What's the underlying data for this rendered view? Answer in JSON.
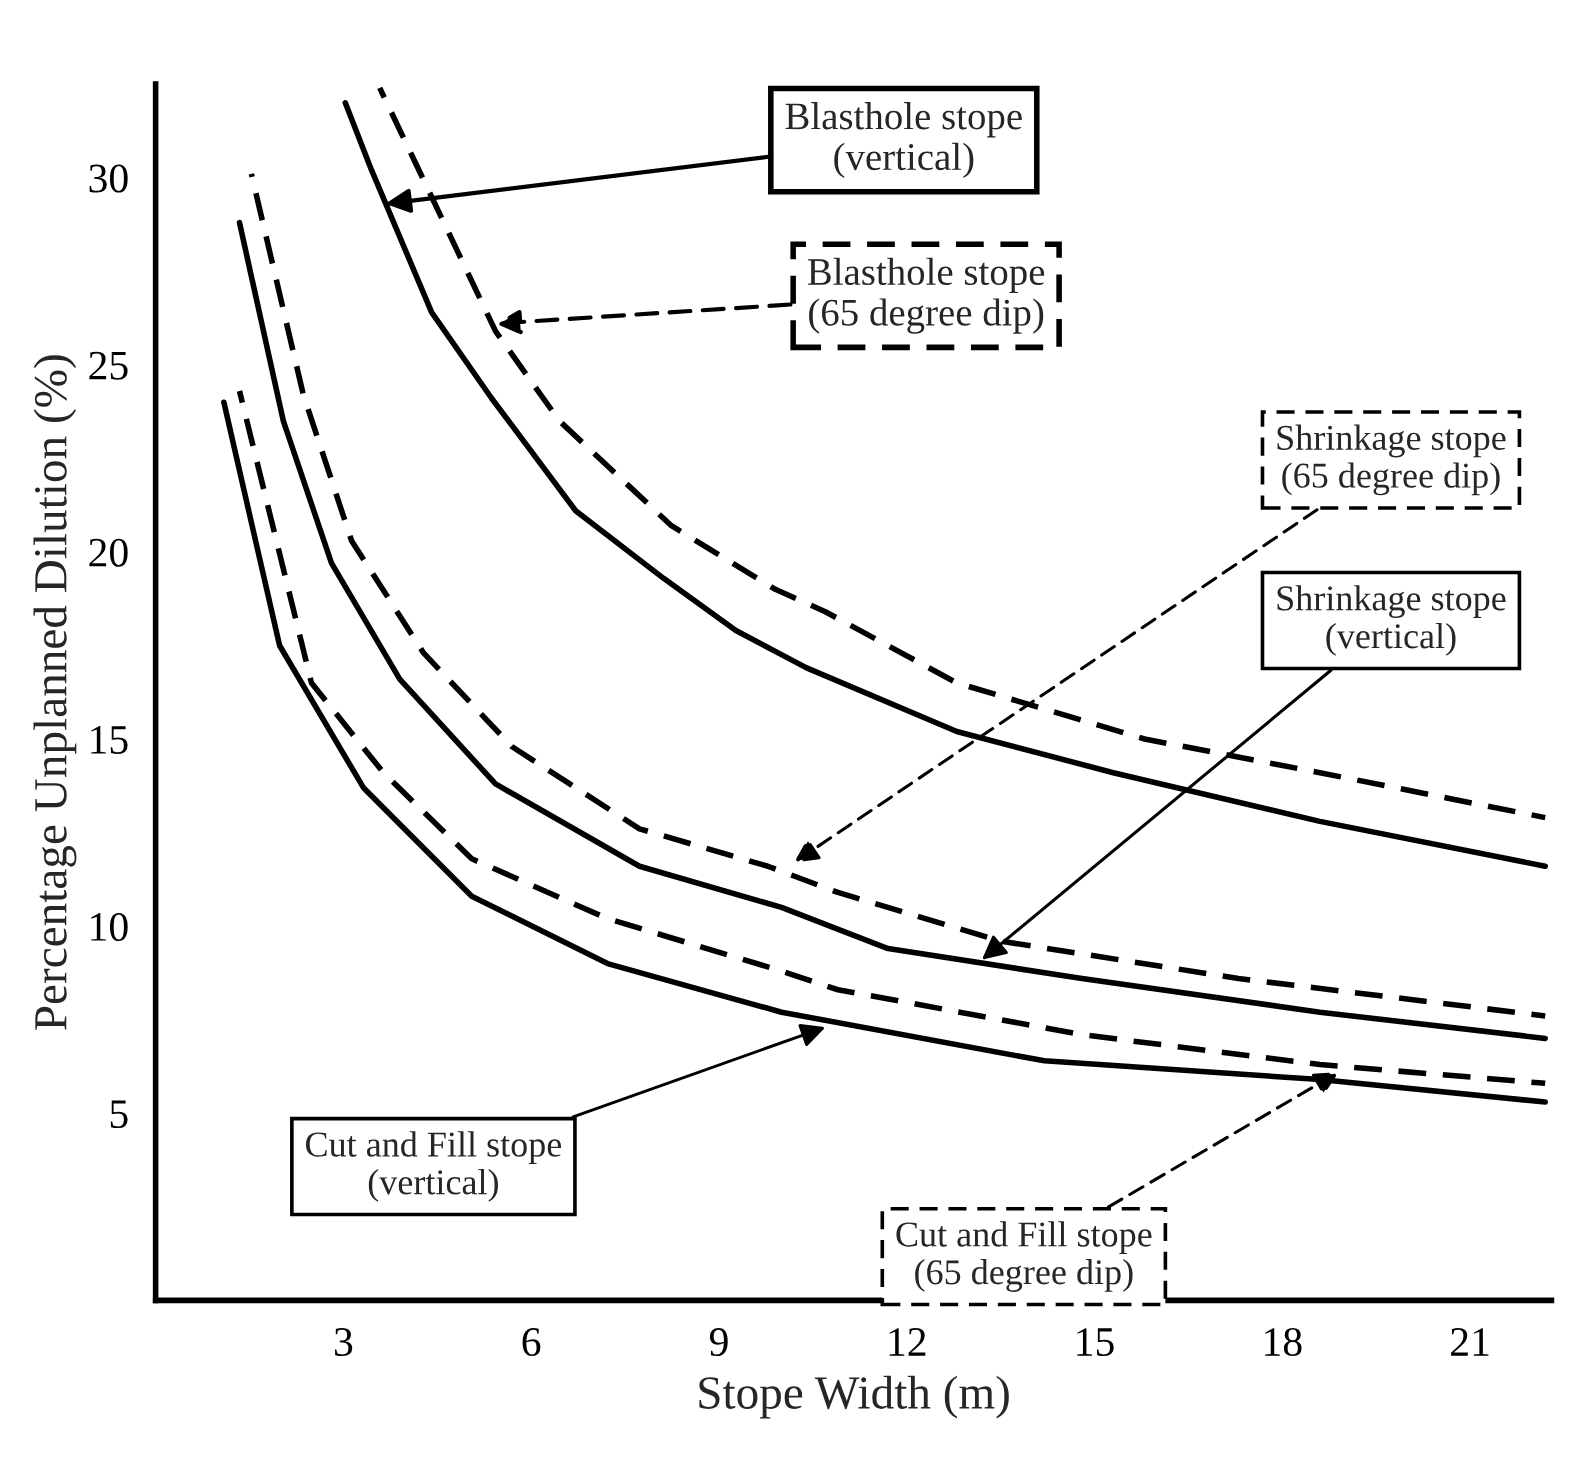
{
  "chart_data": {
    "type": "line",
    "xlabel": "Stope Width (m)",
    "ylabel": "Percentage Unplanned Dilution (%)",
    "xlim": [
      0,
      22.3
    ],
    "ylim": [
      0,
      32.5
    ],
    "xticks": [
      3,
      6,
      9,
      12,
      15,
      18,
      21
    ],
    "yticks": [
      5,
      10,
      15,
      20,
      25,
      30
    ],
    "grid": false,
    "legend": false,
    "marker": "none",
    "series": [
      {
        "color": "#000000",
        "line_style": "solid",
        "x": [
          3.03,
          3.45,
          4.41,
          5.37,
          6.71,
          8.11,
          9.27,
          10.4,
          12.8,
          15.3,
          18.6,
          22.2
        ],
        "values": [
          32.0,
          30.2,
          26.4,
          24.1,
          21.1,
          19.3,
          17.9,
          16.9,
          15.2,
          14.1,
          12.8,
          11.6
        ]
      },
      {
        "color": "#000000",
        "line_style": "dashed",
        "x": [
          3.58,
          4.15,
          5.43,
          6.45,
          8.24,
          9.9,
          10.7,
          12.8,
          15.8,
          18.6,
          22.2
        ],
        "values": [
          32.4,
          30.4,
          25.9,
          23.5,
          20.7,
          19.0,
          18.4,
          16.5,
          15.0,
          14.1,
          12.9
        ]
      },
      {
        "color": "#000000",
        "line_style": "dashed",
        "x": [
          1.53,
          2.36,
          3.13,
          4.28,
          5.69,
          7.73,
          9.78,
          10.9,
          13.5,
          17.3,
          22.2
        ],
        "values": [
          30.1,
          24.2,
          20.3,
          17.3,
          14.8,
          12.6,
          11.6,
          10.9,
          9.6,
          8.6,
          7.6
        ]
      },
      {
        "color": "#000000",
        "line_style": "solid",
        "x": [
          1.34,
          2.04,
          2.81,
          3.9,
          5.43,
          7.73,
          10.0,
          11.7,
          14.8,
          18.6,
          22.2
        ],
        "values": [
          28.8,
          23.5,
          19.7,
          16.6,
          13.8,
          11.6,
          10.5,
          9.4,
          8.6,
          7.7,
          7.0
        ]
      },
      {
        "color": "#000000",
        "line_style": "solid",
        "x": [
          1.09,
          1.98,
          3.32,
          5.05,
          7.22,
          10.0,
          14.2,
          18.6,
          22.2
        ],
        "values": [
          24.0,
          17.5,
          13.7,
          10.8,
          9.0,
          7.7,
          6.4,
          5.9,
          5.3
        ]
      },
      {
        "color": "#000000",
        "line_style": "dashed",
        "x": [
          1.34,
          2.49,
          3.64,
          5.05,
          7.22,
          10.0,
          10.9,
          14.8,
          18.6,
          22.2
        ],
        "values": [
          24.3,
          16.5,
          14.1,
          11.8,
          10.2,
          8.8,
          8.3,
          7.1,
          6.3,
          5.8
        ]
      }
    ],
    "annotations": [
      {
        "text": "Blasthole stope\n(vertical)",
        "x": 3.67,
        "y": 29.3
      },
      {
        "text": "Blasthole stope\n(65 degree dip)",
        "x": 5.43,
        "y": 26.1
      },
      {
        "text": "Shrinkage stope\n(65 degree dip)",
        "x": 10.2,
        "y": 11.7
      },
      {
        "text": "Shrinkage stope\n(vertical)",
        "x": 13.2,
        "y": 9.1
      },
      {
        "text": "Cut and Fill stope\n(vertical)",
        "x": 10.7,
        "y": 7.3
      },
      {
        "text": "Cut and Fill stope\n(65 degree dip)",
        "x": 18.9,
        "y": 6.1
      }
    ]
  }
}
